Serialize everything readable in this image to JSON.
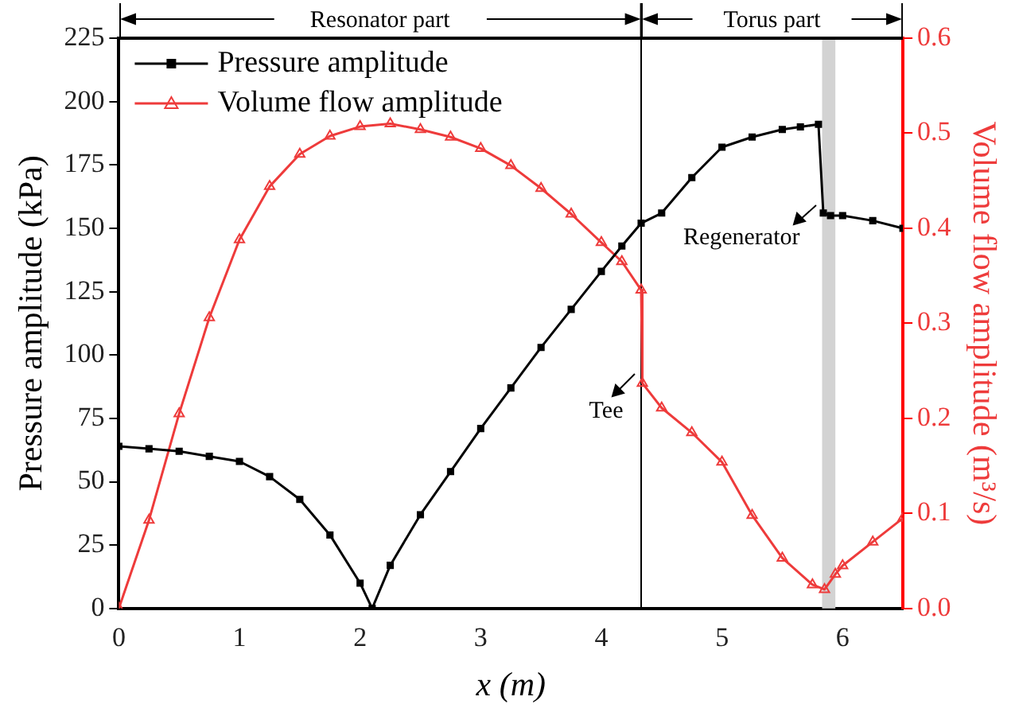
{
  "chart_data": {
    "type": "line",
    "xlabel": "x (m)",
    "ylabel": "Pressure amplitude (kPa)",
    "y2label": "Volume flow amplitude (m³/s)",
    "xlim": [
      0,
      6.5
    ],
    "xticks": [
      0,
      1,
      2,
      3,
      4,
      5,
      6
    ],
    "ylim": [
      0,
      225
    ],
    "yticks": [
      0,
      25,
      50,
      75,
      100,
      125,
      150,
      175,
      200,
      225
    ],
    "y2lim": [
      0,
      0.6
    ],
    "y2ticks": [
      {
        "value": 0,
        "label": "0.0"
      },
      0.1,
      0.2,
      0.3,
      0.4,
      0.5,
      0.6
    ],
    "grid": false,
    "legend": "top left",
    "series": [
      {
        "name": "Pressure amplitude",
        "color": "#000000",
        "marker": "square",
        "x": [
          0,
          0.25,
          0.5,
          0.75,
          1,
          1.25,
          1.5,
          1.75,
          2,
          2.1,
          2.25,
          2.5,
          2.75,
          3,
          3.25,
          3.5,
          3.75,
          4,
          4.17,
          4.33,
          4.5,
          4.75,
          5,
          5.25,
          5.5,
          5.65,
          5.8,
          5.84,
          5.9,
          6,
          6.25,
          6.5
        ],
        "values": [
          64,
          63,
          62,
          60,
          58,
          52,
          43,
          29,
          10,
          0,
          17,
          37,
          54,
          71,
          87,
          103,
          118,
          133,
          143,
          152,
          156,
          170,
          182,
          186,
          189,
          190,
          191,
          156,
          155,
          155,
          153,
          150
        ]
      },
      {
        "name": "Volume flow amplitude",
        "color": "#ee3b3b",
        "marker": "triangle",
        "axis": "y2",
        "x": [
          0,
          0.25,
          0.5,
          0.75,
          1,
          1.25,
          1.5,
          1.75,
          2,
          2.25,
          2.5,
          2.75,
          3,
          3.25,
          3.5,
          3.75,
          4,
          4.17,
          4.33,
          4.34,
          4.5,
          4.75,
          5,
          5.25,
          5.5,
          5.75,
          5.85,
          5.94,
          6,
          6.25,
          6.5
        ],
        "values": [
          0,
          0.093,
          0.205,
          0.306,
          0.388,
          0.444,
          0.478,
          0.497,
          0.507,
          0.51,
          0.504,
          0.496,
          0.484,
          0.466,
          0.442,
          0.415,
          0.385,
          0.365,
          0.335,
          0.237,
          0.211,
          0.185,
          0.154,
          0.098,
          0.053,
          0.025,
          0.02,
          0.036,
          0.045,
          0.07,
          0.095
        ]
      }
    ],
    "ref_lines": [
      {
        "axis": "x",
        "value": 4.33,
        "label": "Tee",
        "color": "#000000"
      }
    ],
    "bands": [
      {
        "axis": "x",
        "from": 5.83,
        "to": 5.94,
        "label": "Regenerator",
        "color": "#d3d3d3"
      }
    ],
    "annotations": [
      "Resonator part",
      "Torus part"
    ]
  }
}
